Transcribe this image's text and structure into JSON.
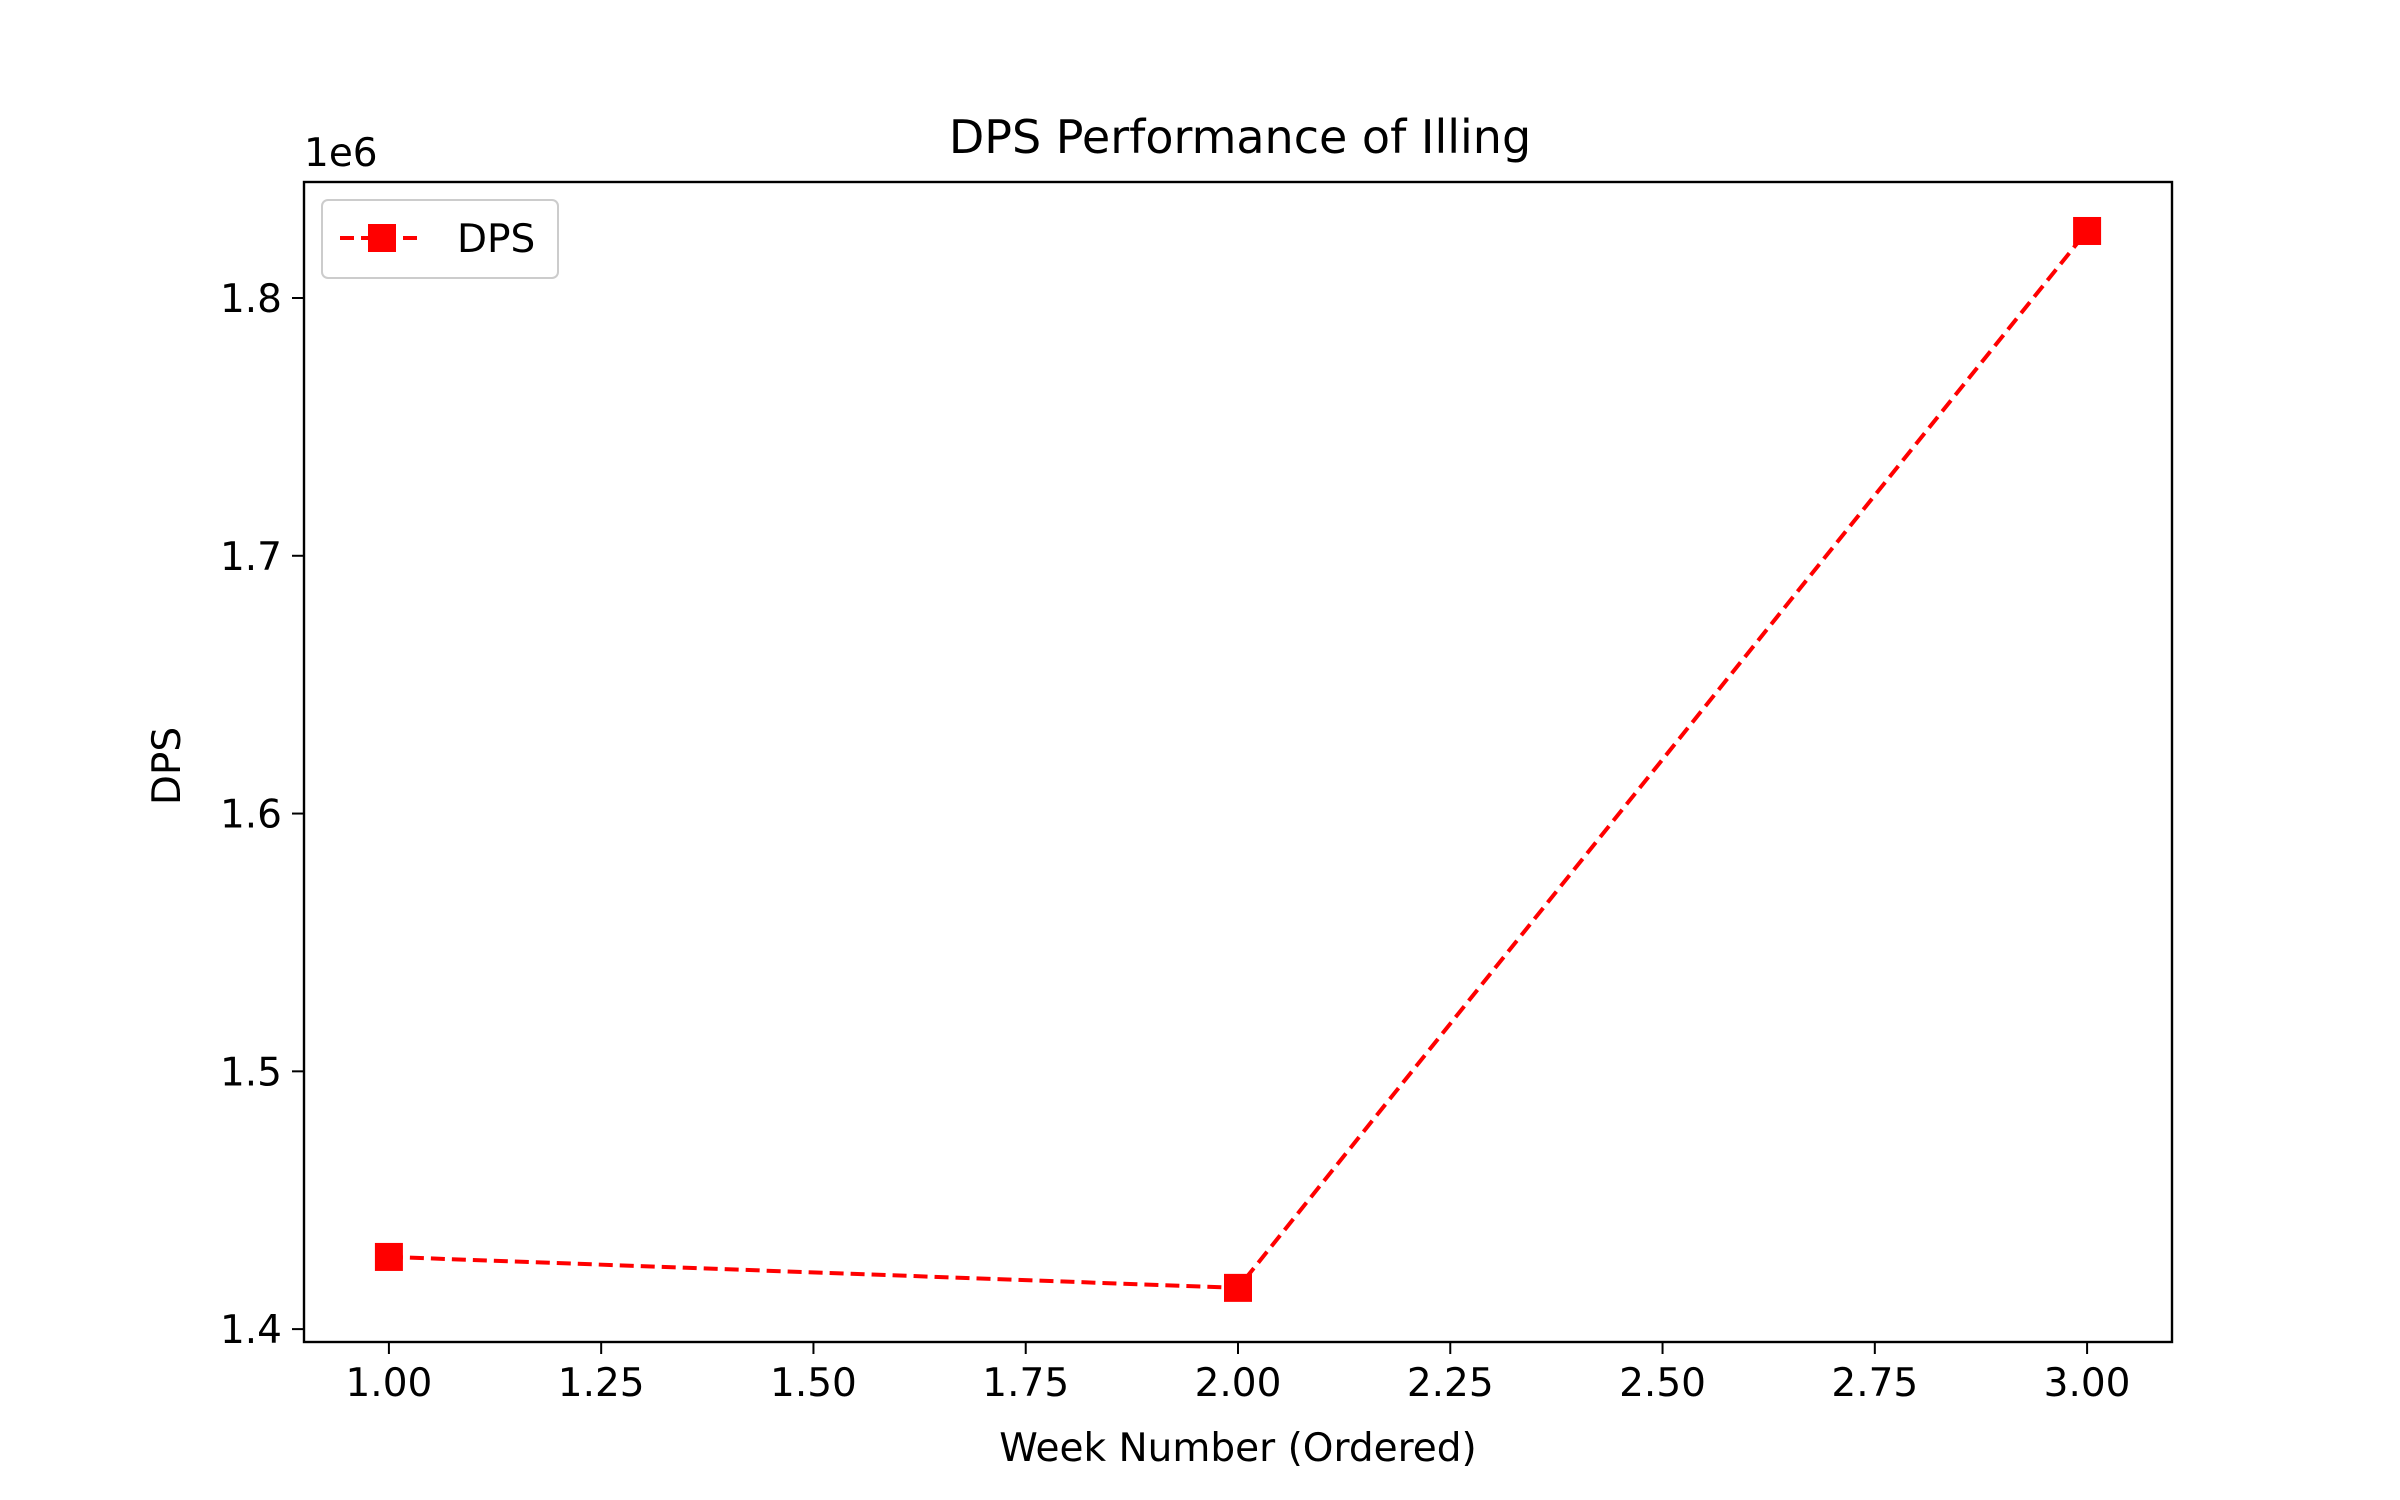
{
  "chart_data": {
    "type": "line",
    "title": "DPS Performance of Illing",
    "xlabel": "Week Number (Ordered)",
    "ylabel": "DPS",
    "y_offset_label": "1e6",
    "xlim": [
      0.9,
      3.1
    ],
    "ylim": [
      1395000,
      1845000
    ],
    "x_ticks": [
      1.0,
      1.25,
      1.5,
      1.75,
      2.0,
      2.25,
      2.5,
      2.75,
      3.0
    ],
    "x_tick_labels": [
      "1.00",
      "1.25",
      "1.50",
      "1.75",
      "2.00",
      "2.25",
      "2.50",
      "2.75",
      "3.00"
    ],
    "y_ticks": [
      1400000,
      1500000,
      1600000,
      1700000,
      1800000
    ],
    "y_tick_labels": [
      "1.4",
      "1.5",
      "1.6",
      "1.7",
      "1.8"
    ],
    "grid": false,
    "legend_position": "top-left",
    "series": [
      {
        "name": "DPS",
        "color": "#ff0000",
        "line_style": "dashed",
        "marker": "square",
        "x": [
          1.0,
          2.0,
          3.0
        ],
        "y": [
          1428000,
          1416000,
          1826000
        ]
      }
    ]
  }
}
